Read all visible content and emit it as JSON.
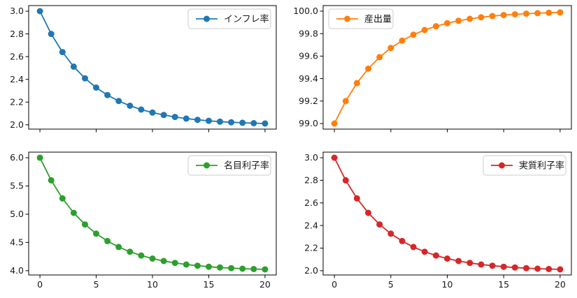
{
  "figure": {
    "background": "#ffffff",
    "grid": "off"
  },
  "chart_data": [
    {
      "id": "inflation",
      "type": "line",
      "title": "",
      "legend": "インフレ率",
      "legend_loc": "upper-right",
      "color": "#1f77b4",
      "marker": "circle",
      "x": [
        0,
        1,
        2,
        3,
        4,
        5,
        6,
        7,
        8,
        9,
        10,
        11,
        12,
        13,
        14,
        15,
        16,
        17,
        18,
        19,
        20
      ],
      "values": [
        3.0,
        2.8,
        2.64,
        2.512,
        2.4096,
        2.3277,
        2.2621,
        2.2097,
        2.1678,
        2.1342,
        2.1074,
        2.0859,
        2.0687,
        2.055,
        2.044,
        2.0352,
        2.0281,
        2.0225,
        2.018,
        2.0144,
        2.0115
      ],
      "xlim": [
        -1,
        21
      ],
      "ylim": [
        1.9621,
        3.0494
      ],
      "xticks": [
        0,
        5,
        10,
        15,
        20
      ],
      "xtick_labels": [
        "0",
        "5",
        "10",
        "15",
        "20"
      ],
      "show_xtick_labels": false,
      "yticks": [
        2.0,
        2.2,
        2.4,
        2.6,
        2.8,
        3.0
      ],
      "ytick_labels": [
        "2.0",
        "2.2",
        "2.4",
        "2.6",
        "2.8",
        "3.0"
      ]
    },
    {
      "id": "output",
      "type": "line",
      "title": "",
      "legend": "産出量",
      "legend_loc": "upper-left",
      "color": "#ff7f0e",
      "marker": "circle",
      "x": [
        0,
        1,
        2,
        3,
        4,
        5,
        6,
        7,
        8,
        9,
        10,
        11,
        12,
        13,
        14,
        15,
        16,
        17,
        18,
        19,
        20
      ],
      "values": [
        99.0,
        99.2,
        99.36,
        99.488,
        99.5904,
        99.6723,
        99.7379,
        99.7903,
        99.8322,
        99.8658,
        99.8926,
        99.9141,
        99.9313,
        99.945,
        99.956,
        99.9648,
        99.9719,
        99.9775,
        99.982,
        99.9856,
        99.9885
      ],
      "xlim": [
        -1,
        21
      ],
      "ylim": [
        98.9506,
        100.0494
      ],
      "xticks": [
        0,
        5,
        10,
        15,
        20
      ],
      "xtick_labels": [
        "0",
        "5",
        "10",
        "15",
        "20"
      ],
      "show_xtick_labels": false,
      "yticks": [
        99.0,
        99.2,
        99.4,
        99.6,
        99.8,
        100.0
      ],
      "ytick_labels": [
        "99.0",
        "99.2",
        "99.4",
        "99.6",
        "99.8",
        "100.0"
      ]
    },
    {
      "id": "nominal-interest-rate",
      "type": "line",
      "title": "",
      "legend": "名目利子率",
      "legend_loc": "upper-right",
      "color": "#2ca02c",
      "marker": "circle",
      "x": [
        0,
        1,
        2,
        3,
        4,
        5,
        6,
        7,
        8,
        9,
        10,
        11,
        12,
        13,
        14,
        15,
        16,
        17,
        18,
        19,
        20
      ],
      "values": [
        6.0,
        5.6,
        5.28,
        5.024,
        4.8192,
        4.6554,
        4.5243,
        4.4194,
        4.3355,
        4.2684,
        4.2147,
        4.1718,
        4.1374,
        4.11,
        4.088,
        4.0704,
        4.0563,
        4.045,
        4.036,
        4.0288,
        4.0231
      ],
      "xlim": [
        -1,
        21
      ],
      "ylim": [
        3.9242,
        6.0988
      ],
      "xticks": [
        0,
        5,
        10,
        15,
        20
      ],
      "xtick_labels": [
        "0",
        "5",
        "10",
        "15",
        "20"
      ],
      "show_xtick_labels": true,
      "yticks": [
        4.0,
        4.5,
        5.0,
        5.5,
        6.0
      ],
      "ytick_labels": [
        "4.0",
        "4.5",
        "5.0",
        "5.5",
        "6.0"
      ]
    },
    {
      "id": "real-interest-rate",
      "type": "line",
      "title": "",
      "legend": "実質利子率",
      "legend_loc": "upper-right",
      "color": "#d62728",
      "marker": "circle",
      "x": [
        0,
        1,
        2,
        3,
        4,
        5,
        6,
        7,
        8,
        9,
        10,
        11,
        12,
        13,
        14,
        15,
        16,
        17,
        18,
        19,
        20
      ],
      "values": [
        3.0,
        2.8,
        2.64,
        2.512,
        2.4096,
        2.3277,
        2.2621,
        2.2097,
        2.1678,
        2.1342,
        2.1074,
        2.0859,
        2.0687,
        2.055,
        2.044,
        2.0352,
        2.0281,
        2.0225,
        2.018,
        2.0144,
        2.0115
      ],
      "xlim": [
        -1,
        21
      ],
      "ylim": [
        1.9621,
        3.0494
      ],
      "xticks": [
        0,
        5,
        10,
        15,
        20
      ],
      "xtick_labels": [
        "0",
        "5",
        "10",
        "15",
        "20"
      ],
      "show_xtick_labels": true,
      "yticks": [
        2.0,
        2.2,
        2.4,
        2.6,
        2.8,
        3.0
      ],
      "ytick_labels": [
        "2.0",
        "2.2",
        "2.4",
        "2.6",
        "2.8",
        "3.0"
      ]
    }
  ]
}
